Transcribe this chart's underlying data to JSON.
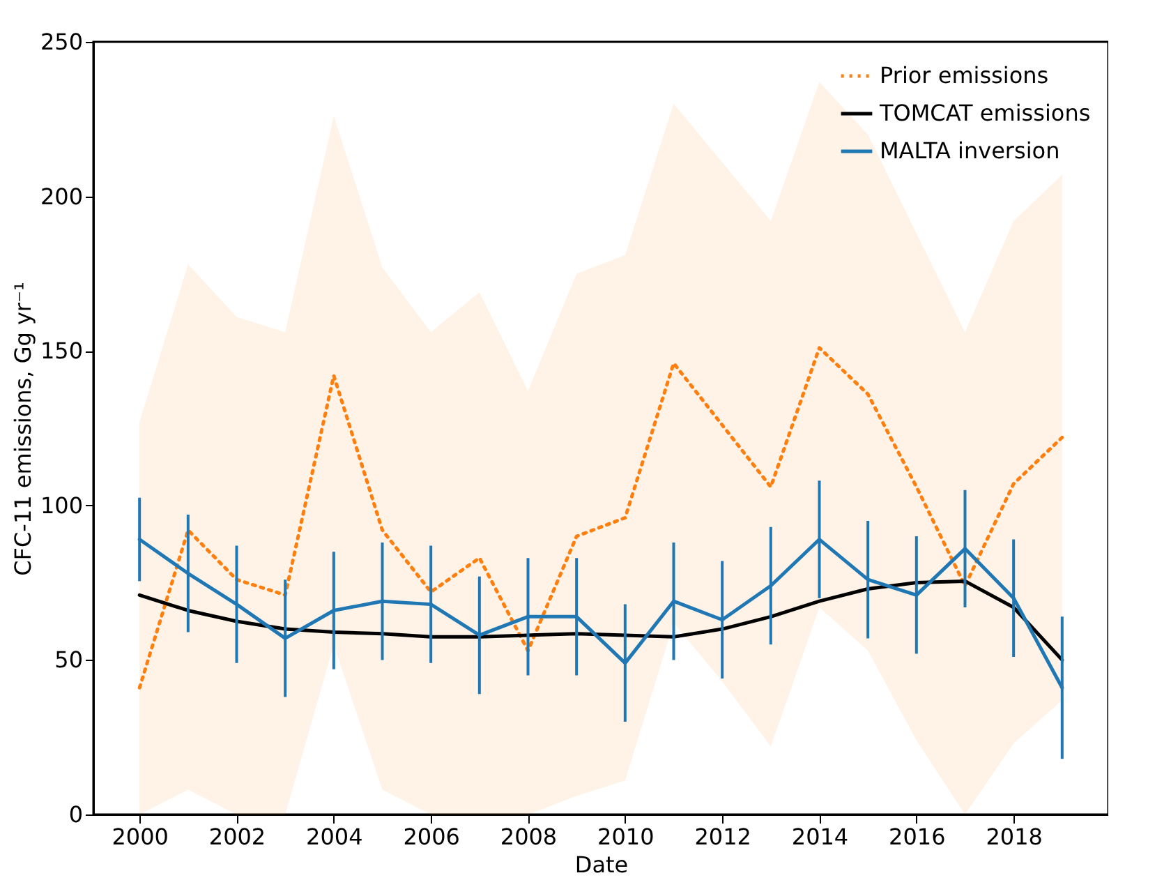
{
  "chart_data": {
    "type": "line",
    "xlabel": "Date",
    "ylabel": "CFC-11 emissions, Gg yr⁻¹",
    "x": [
      2000,
      2001,
      2002,
      2003,
      2004,
      2005,
      2006,
      2007,
      2008,
      2009,
      2010,
      2011,
      2012,
      2013,
      2014,
      2015,
      2016,
      2017,
      2018,
      2019
    ],
    "xlim": [
      1999.05,
      2019.95
    ],
    "xticks": [
      2000,
      2002,
      2004,
      2006,
      2008,
      2010,
      2012,
      2014,
      2016,
      2018
    ],
    "ylim": [
      0,
      250
    ],
    "yticks": [
      0,
      50,
      100,
      150,
      200,
      250
    ],
    "grid": false,
    "legend": "top right",
    "series": [
      {
        "name": "Prior emissions",
        "color": "#ff7f0e",
        "line_style": "dotted",
        "values": [
          41,
          92,
          76,
          71,
          142,
          92,
          72,
          83,
          53,
          90,
          96,
          146,
          126,
          106,
          151,
          136,
          106,
          74,
          107,
          122
        ],
        "lower": [
          0,
          8,
          0,
          0,
          55,
          8,
          0,
          0,
          0,
          6,
          11,
          62,
          43,
          22,
          67,
          53,
          24,
          0,
          23,
          37
        ],
        "upper": [
          127,
          178,
          161,
          156,
          226,
          177,
          156,
          169,
          137,
          175,
          181,
          230,
          211,
          192,
          237,
          220,
          188,
          156,
          192,
          207
        ]
      },
      {
        "name": "TOMCAT emissions",
        "color": "#000000",
        "line_style": "solid",
        "values": [
          71,
          66,
          62.5,
          60,
          59,
          58.5,
          57.5,
          57.5,
          58,
          58.5,
          58,
          57.5,
          60,
          64,
          69,
          73,
          75,
          75.5,
          67,
          50
        ]
      },
      {
        "name": "MALTA inversion",
        "color": "#1f77b4",
        "line_style": "solid",
        "values": [
          89,
          78,
          68,
          57,
          66,
          69,
          68,
          58,
          64,
          64,
          49,
          69,
          63,
          74,
          89,
          76,
          71,
          86,
          70,
          41
        ],
        "errors": [
          13.5,
          19,
          19,
          19,
          19,
          19,
          19,
          19,
          19,
          19,
          19,
          19,
          19,
          19,
          19,
          19,
          19,
          19,
          19,
          23
        ]
      }
    ]
  }
}
